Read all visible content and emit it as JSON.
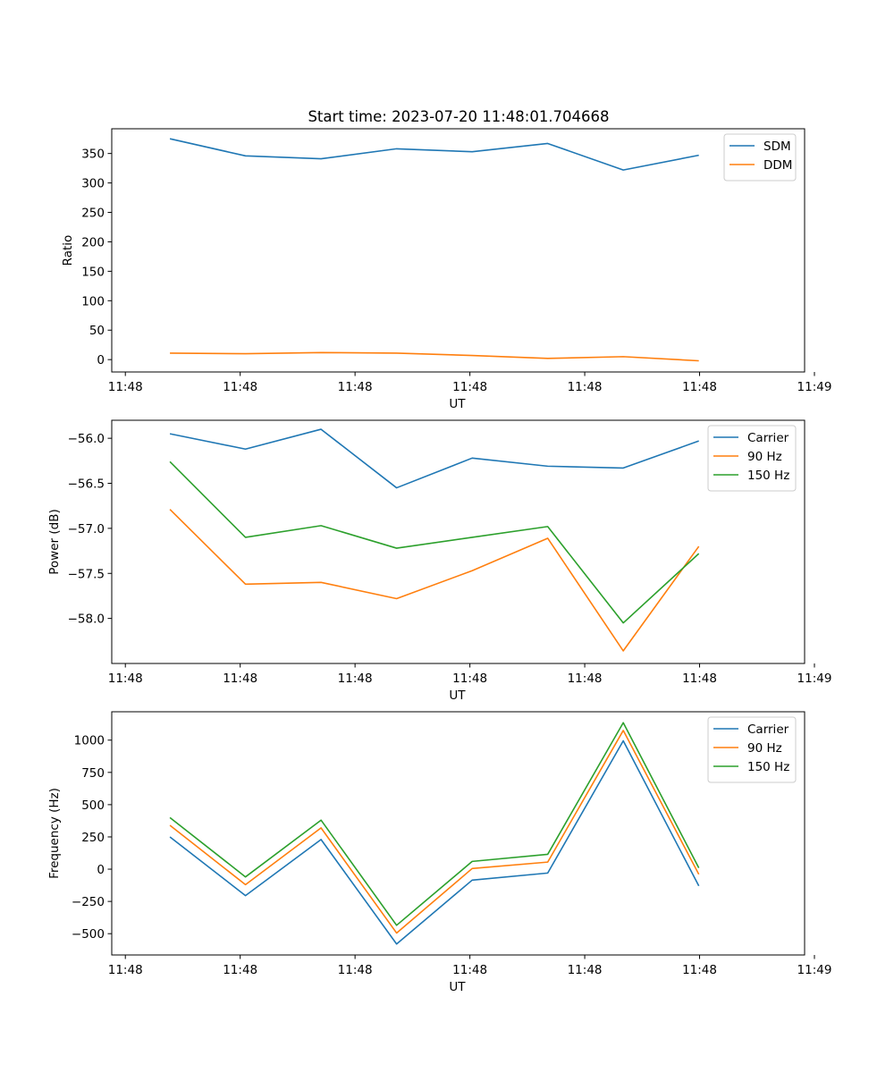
{
  "title": "Start time: 2023-07-20 11:48:01.704668",
  "colors": {
    "c0": "#1f77b4",
    "c1": "#ff7f0e",
    "c2": "#2ca02c"
  },
  "chart_data": [
    {
      "type": "line",
      "title": "Start time: 2023-07-20 11:48:01.704668",
      "xlabel": "UT",
      "ylabel": "Ratio",
      "x": [
        1,
        2,
        3,
        4,
        5,
        6,
        7,
        8
      ],
      "xlim": [
        0.23,
        9.4
      ],
      "x_ticks": [
        0.41,
        1.93,
        3.45,
        4.97,
        6.49,
        8.01,
        9.53
      ],
      "x_tick_labels": [
        "11:48",
        "11:48",
        "11:48",
        "11:48",
        "11:48",
        "11:48",
        "11:49"
      ],
      "ylim": [
        -21,
        392
      ],
      "y_ticks": [
        0,
        50,
        100,
        150,
        200,
        250,
        300,
        350
      ],
      "y_tick_labels": [
        "0",
        "50",
        "100",
        "150",
        "200",
        "250",
        "300",
        "350"
      ],
      "legend": "top-right",
      "series": [
        {
          "name": "SDM",
          "color": "#1f77b4",
          "values": [
            375,
            346,
            341,
            358,
            353,
            367,
            322,
            347
          ]
        },
        {
          "name": "DDM",
          "color": "#ff7f0e",
          "values": [
            11,
            10,
            12,
            11,
            7,
            2,
            5,
            -2
          ]
        }
      ]
    },
    {
      "type": "line",
      "xlabel": "UT",
      "ylabel": "Power (dB)",
      "x": [
        1,
        2,
        3,
        4,
        5,
        6,
        7,
        8
      ],
      "xlim": [
        0.23,
        9.4
      ],
      "x_ticks": [
        0.41,
        1.93,
        3.45,
        4.97,
        6.49,
        8.01,
        9.53
      ],
      "x_tick_labels": [
        "11:48",
        "11:48",
        "11:48",
        "11:48",
        "11:48",
        "11:48",
        "11:49"
      ],
      "ylim": [
        -58.5,
        -55.8
      ],
      "y_ticks": [
        -56.0,
        -56.5,
        -57.0,
        -57.5,
        -58.0
      ],
      "y_tick_labels": [
        "−56.0",
        "−56.5",
        "−57.0",
        "−57.5",
        "−58.0"
      ],
      "legend": "top-right",
      "series": [
        {
          "name": "Carrier",
          "color": "#1f77b4",
          "values": [
            -55.95,
            -56.12,
            -55.9,
            -56.55,
            -56.22,
            -56.31,
            -56.33,
            -56.03
          ]
        },
        {
          "name": "90 Hz",
          "color": "#ff7f0e",
          "values": [
            -56.79,
            -57.62,
            -57.6,
            -57.78,
            -57.47,
            -57.11,
            -58.36,
            -57.2
          ]
        },
        {
          "name": "150 Hz",
          "color": "#2ca02c",
          "values": [
            -56.26,
            -57.1,
            -56.97,
            -57.22,
            -57.1,
            -56.98,
            -58.05,
            -57.28
          ]
        }
      ]
    },
    {
      "type": "line",
      "xlabel": "UT",
      "ylabel": "Frequency (Hz)",
      "x": [
        1,
        2,
        3,
        4,
        5,
        6,
        7,
        8
      ],
      "xlim": [
        0.23,
        9.4
      ],
      "x_ticks": [
        0.41,
        1.93,
        3.45,
        4.97,
        6.49,
        8.01,
        9.53
      ],
      "x_tick_labels": [
        "11:48",
        "11:48",
        "11:48",
        "11:48",
        "11:48",
        "11:48",
        "11:49"
      ],
      "ylim": [
        -665,
        1220
      ],
      "y_ticks": [
        -500,
        -250,
        0,
        250,
        500,
        750,
        1000
      ],
      "y_tick_labels": [
        "−500",
        "−250",
        "0",
        "250",
        "500",
        "750",
        "1000"
      ],
      "legend": "top-right",
      "series": [
        {
          "name": "Carrier",
          "color": "#1f77b4",
          "values": [
            250,
            -205,
            230,
            -580,
            -85,
            -30,
            995,
            -130
          ]
        },
        {
          "name": "90 Hz",
          "color": "#ff7f0e",
          "values": [
            340,
            -120,
            320,
            -495,
            5,
            55,
            1075,
            -40
          ]
        },
        {
          "name": "150 Hz",
          "color": "#2ca02c",
          "values": [
            400,
            -60,
            380,
            -435,
            60,
            115,
            1135,
            10
          ]
        }
      ]
    }
  ]
}
